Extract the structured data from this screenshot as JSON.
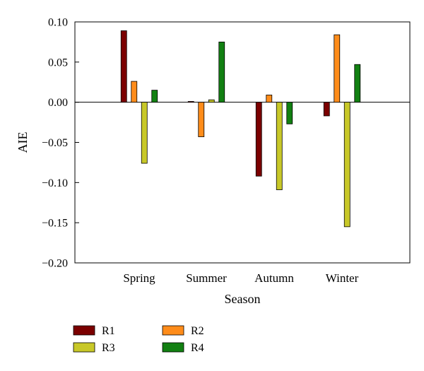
{
  "chart_data": {
    "type": "bar",
    "title": "",
    "xlabel": "Season",
    "ylabel": "AIE",
    "categories": [
      "Spring",
      "Summer",
      "Autumn",
      "Winter"
    ],
    "ylim": [
      -0.2,
      0.1
    ],
    "yticks": [
      0.1,
      0.05,
      0.0,
      -0.05,
      -0.1,
      -0.15,
      -0.2
    ],
    "ytick_labels": [
      "0.10",
      "0.05",
      "0.00",
      "−0.05",
      "−0.10",
      "−0.15",
      "−0.20"
    ],
    "grid": false,
    "legend_position": "bottom-left",
    "series": [
      {
        "name": "R1",
        "color": "#7b0000",
        "values": [
          0.089,
          0.001,
          -0.092,
          -0.017
        ]
      },
      {
        "name": "R2",
        "color": "#ff8c1a",
        "values": [
          0.026,
          -0.043,
          0.009,
          0.084
        ]
      },
      {
        "name": "R3",
        "color": "#c8c828",
        "values": [
          -0.076,
          0.003,
          -0.109,
          -0.155
        ]
      },
      {
        "name": "R4",
        "color": "#128012",
        "values": [
          0.015,
          0.075,
          -0.027,
          0.047
        ]
      }
    ]
  }
}
